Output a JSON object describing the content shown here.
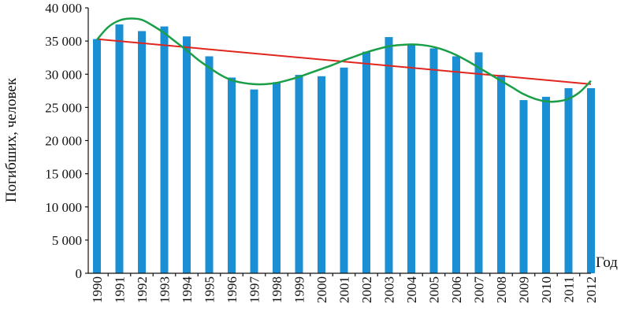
{
  "chart_data": {
    "type": "bar",
    "xlabel": "Год",
    "ylabel": "Погибших, человек",
    "ylim": [
      0,
      40000
    ],
    "y_ticks": [
      0,
      5000,
      10000,
      15000,
      20000,
      25000,
      30000,
      35000,
      40000
    ],
    "y_tick_labels": [
      "0",
      "5 000",
      "10 000",
      "15 000",
      "20 000",
      "25 000",
      "30 000",
      "35 000",
      "40 000"
    ],
    "categories": [
      "1990",
      "1991",
      "1992",
      "1993",
      "1994",
      "1995",
      "1996",
      "1997",
      "1998",
      "1999",
      "2000",
      "2001",
      "2002",
      "2003",
      "2004",
      "2005",
      "2006",
      "2007",
      "2008",
      "2009",
      "2010",
      "2011",
      "2012"
    ],
    "values": [
      35300,
      37500,
      36500,
      37200,
      35700,
      32700,
      29500,
      27700,
      28800,
      29900,
      29700,
      31000,
      33400,
      35600,
      34500,
      33900,
      32700,
      33300,
      29900,
      26100,
      26600,
      27900,
      27900
    ],
    "bar_color": "#1a8fd4",
    "trend_lines": [
      {
        "kind": "linear",
        "color": "#e0261f",
        "x_from": "1990",
        "x_to": "2012",
        "y_from": 35300,
        "y_to": 28500
      },
      {
        "kind": "polynomial",
        "color": "#1a9e48",
        "points": [
          [
            1990,
            35200
          ],
          [
            1990.5,
            37100
          ],
          [
            1991,
            38100
          ],
          [
            1991.5,
            38400
          ],
          [
            1992,
            38200
          ],
          [
            1992.5,
            37300
          ],
          [
            1993,
            36200
          ],
          [
            1993.5,
            34900
          ],
          [
            1994,
            33600
          ],
          [
            1994.5,
            32200
          ],
          [
            1995,
            31000
          ],
          [
            1995.5,
            29900
          ],
          [
            1996,
            29100
          ],
          [
            1996.5,
            28700
          ],
          [
            1997,
            28500
          ],
          [
            1997.5,
            28500
          ],
          [
            1998,
            28700
          ],
          [
            1998.5,
            29100
          ],
          [
            1999,
            29600
          ],
          [
            1999.5,
            30200
          ],
          [
            2000,
            30800
          ],
          [
            2000.5,
            31400
          ],
          [
            2001,
            32100
          ],
          [
            2001.5,
            32700
          ],
          [
            2002,
            33300
          ],
          [
            2002.5,
            33800
          ],
          [
            2003,
            34200
          ],
          [
            2003.5,
            34400
          ],
          [
            2004,
            34500
          ],
          [
            2004.5,
            34400
          ],
          [
            2005,
            34100
          ],
          [
            2005.5,
            33600
          ],
          [
            2006,
            32900
          ],
          [
            2006.5,
            32000
          ],
          [
            2007,
            31000
          ],
          [
            2007.5,
            30000
          ],
          [
            2008,
            29000
          ],
          [
            2008.5,
            28000
          ],
          [
            2009,
            27000
          ],
          [
            2009.5,
            26300
          ],
          [
            2010,
            25900
          ],
          [
            2010.5,
            25900
          ],
          [
            2011,
            26300
          ],
          [
            2011.5,
            27300
          ],
          [
            2012,
            29000
          ]
        ]
      }
    ]
  }
}
